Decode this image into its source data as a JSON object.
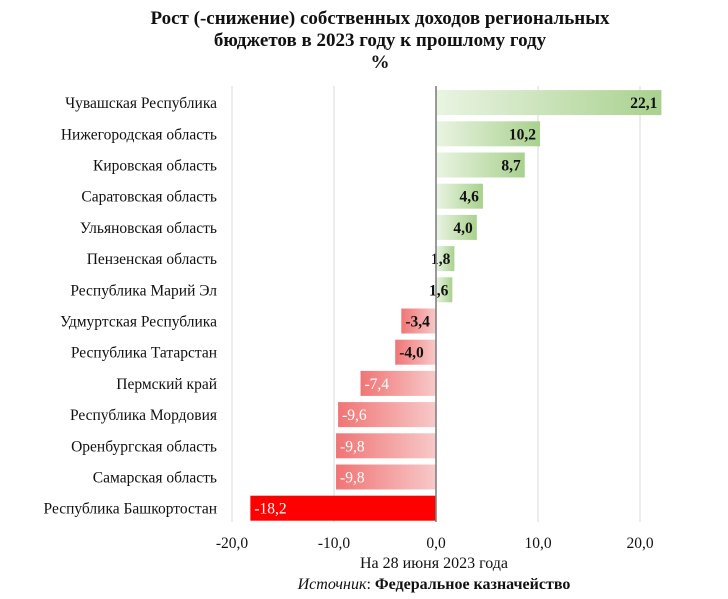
{
  "chart_data": {
    "type": "bar",
    "orientation": "horizontal",
    "title": [
      "Рост (-снижение) собственных доходов региональных",
      "бюджетов в 2023 году к прошлому году",
      "%"
    ],
    "categories": [
      "Чувашская Республика",
      "Нижегородская область",
      "Кировская область",
      "Саратовская область",
      "Ульяновская область",
      "Пензенская область",
      "Республика Марий Эл",
      "Удмуртская Республика",
      "Республика Татарстан",
      "Пермский край",
      "Республика Мордовия",
      "Оренбургская область",
      "Самарская область",
      "Республика Башкортостан"
    ],
    "values": [
      22.1,
      10.2,
      8.7,
      4.6,
      4.0,
      1.8,
      1.6,
      -3.4,
      -4.0,
      -7.4,
      -9.6,
      -9.8,
      -9.8,
      -18.2
    ],
    "value_labels": [
      "22,1",
      "10,2",
      "8,7",
      "4,6",
      "4,0",
      "1,8",
      "1,6",
      "-3,4",
      "-4,0",
      "-7,4",
      "-9,6",
      "-9,8",
      "-9,8",
      "-18,2"
    ],
    "xlim": [
      -20,
      20
    ],
    "xticks": [
      -20,
      -10,
      0,
      10,
      20
    ],
    "xtick_labels": [
      "-20,0",
      "-10,0",
      "0,0",
      "10,0",
      "20,0"
    ],
    "grid": true,
    "colors": {
      "positive_light": "#eaf4e3",
      "positive_dark": "#a9d18e",
      "negative_light": "#f8c9c9",
      "negative_mid": "#f07575",
      "negative_strong": "#ff0000",
      "grid": "#d9d9d9",
      "axis": "#808080"
    }
  },
  "footer": {
    "date_note": "На 28 июня 2023 года",
    "source_label": "Источник",
    "source_sep": ": ",
    "source_value": "Федеральное казначейство"
  }
}
